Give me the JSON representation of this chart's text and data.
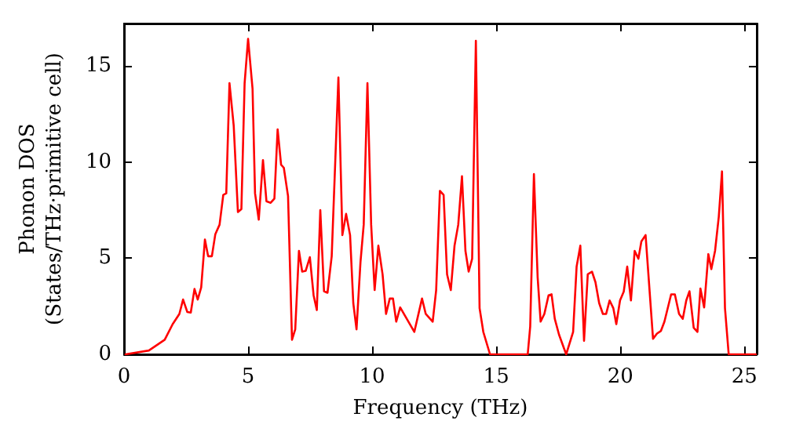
{
  "chart_data": {
    "type": "line",
    "xlabel": "Frequency (THz)",
    "ylabel": "Phonon DOS\n(States/THz·primitive cell)",
    "xlim": [
      0,
      25.5
    ],
    "ylim": [
      0,
      17.2
    ],
    "xticks": [
      0,
      5,
      10,
      15,
      20,
      25
    ],
    "yticks": [
      0,
      5,
      10,
      15
    ],
    "grid": false,
    "marker": "none",
    "line_style": "solid",
    "series": [
      {
        "color": "#ff0000",
        "x": [
          0.06,
          1.0,
          1.64,
          1.96,
          2.23,
          2.38,
          2.55,
          2.69,
          2.84,
          2.97,
          3.11,
          3.26,
          3.39,
          3.54,
          3.68,
          3.85,
          4.0,
          4.12,
          4.25,
          4.42,
          4.59,
          4.73,
          4.86,
          5.0,
          5.18,
          5.28,
          5.43,
          5.6,
          5.74,
          5.91,
          6.06,
          6.19,
          6.33,
          6.44,
          6.61,
          6.77,
          6.9,
          7.05,
          7.18,
          7.32,
          7.49,
          7.64,
          7.77,
          7.91,
          8.06,
          8.2,
          8.37,
          8.64,
          8.8,
          8.95,
          9.11,
          9.24,
          9.37,
          9.53,
          9.66,
          9.81,
          9.96,
          10.1,
          10.25,
          10.42,
          10.56,
          10.71,
          10.84,
          10.97,
          11.13,
          11.28,
          11.7,
          12.01,
          12.16,
          12.44,
          12.58,
          12.73,
          12.88,
          13.02,
          13.17,
          13.32,
          13.47,
          13.62,
          13.76,
          13.89,
          14.03,
          14.18,
          14.33,
          14.48,
          14.75,
          16.27,
          16.37,
          16.52,
          16.67,
          16.79,
          16.94,
          17.11,
          17.23,
          17.36,
          17.53,
          17.82,
          18.1,
          18.24,
          18.39,
          18.54,
          18.69,
          18.86,
          19.0,
          19.15,
          19.3,
          19.43,
          19.57,
          19.72,
          19.84,
          19.99,
          20.14,
          20.28,
          20.43,
          20.58,
          20.73,
          20.85,
          21.02,
          21.32,
          21.48,
          21.64,
          21.78,
          22.05,
          22.2,
          22.37,
          22.52,
          22.66,
          22.79,
          22.96,
          23.11,
          23.23,
          23.38,
          23.55,
          23.67,
          23.82,
          23.97,
          24.1,
          24.22,
          24.37,
          25.46
        ],
        "values": [
          0,
          0.2,
          0.76,
          1.57,
          2.1,
          2.85,
          2.2,
          2.17,
          3.4,
          2.85,
          3.48,
          5.97,
          5.1,
          5.1,
          6.25,
          6.74,
          8.29,
          8.37,
          14.1,
          11.9,
          7.4,
          7.55,
          14.1,
          16.4,
          13.8,
          8.37,
          7.0,
          10.1,
          7.96,
          7.88,
          8.1,
          11.7,
          9.86,
          9.7,
          8.23,
          0.76,
          1.3,
          5.38,
          4.3,
          4.34,
          5.05,
          3.07,
          2.3,
          7.5,
          3.28,
          3.2,
          5.1,
          14.4,
          6.2,
          7.3,
          6.2,
          2.66,
          1.3,
          4.8,
          6.74,
          14.1,
          6.74,
          3.34,
          5.65,
          4.16,
          2.1,
          2.9,
          2.9,
          1.7,
          2.44,
          2.1,
          1.17,
          2.9,
          2.1,
          1.7,
          3.34,
          8.5,
          8.29,
          4.16,
          3.34,
          5.65,
          6.74,
          9.26,
          5.38,
          4.3,
          4.97,
          16.3,
          2.4,
          1.17,
          0,
          0,
          1.44,
          9.37,
          4.0,
          1.7,
          2.1,
          3.07,
          3.12,
          1.85,
          1.03,
          0,
          1.17,
          4.56,
          5.65,
          0.71,
          4.16,
          4.3,
          3.75,
          2.66,
          2.1,
          2.1,
          2.8,
          2.4,
          1.57,
          2.8,
          3.26,
          4.56,
          2.8,
          5.38,
          4.97,
          5.87,
          6.2,
          0.81,
          1.08,
          1.22,
          1.7,
          3.12,
          3.12,
          2.1,
          1.85,
          2.8,
          3.28,
          1.38,
          1.17,
          3.42,
          2.44,
          5.21,
          4.43,
          5.38,
          7.15,
          9.51,
          2.4,
          0,
          0
        ]
      }
    ]
  }
}
